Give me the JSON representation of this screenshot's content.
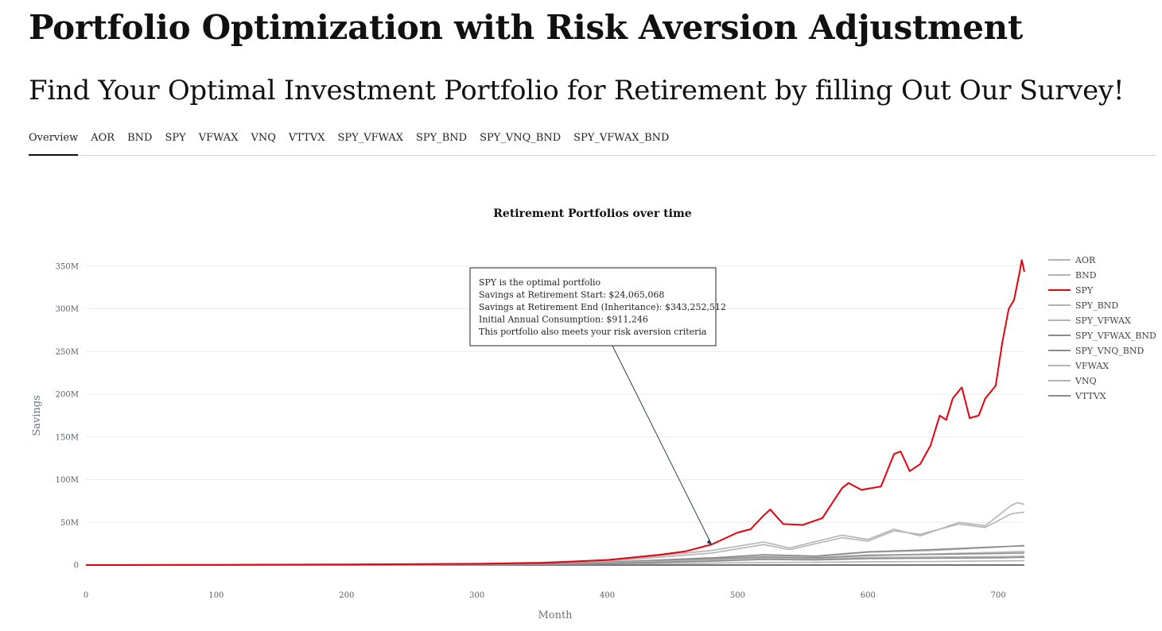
{
  "header": {
    "title": "Portfolio Optimization with Risk Aversion Adjustment",
    "subtitle": "Find Your Optimal Investment Portfolio for Retirement by filling Out Our Survey!"
  },
  "tabs": [
    {
      "label": "Overview",
      "active": true
    },
    {
      "label": "AOR"
    },
    {
      "label": "BND"
    },
    {
      "label": "SPY"
    },
    {
      "label": "VFWAX"
    },
    {
      "label": "VNQ"
    },
    {
      "label": "VTTVX"
    },
    {
      "label": "SPY_VFWAX"
    },
    {
      "label": "SPY_BND"
    },
    {
      "label": "SPY_VNQ_BND"
    },
    {
      "label": "SPY_VFWAX_BND"
    }
  ],
  "colors": {
    "highlight": "#e8000b",
    "muted": "#b4b4b4",
    "muted_dark": "#8c8c8c"
  },
  "chart_data": {
    "type": "line",
    "title": "Retirement Portfolios over time",
    "xlabel": "Month",
    "ylabel": "Savings",
    "xlim": [
      0,
      720
    ],
    "ylim": [
      0,
      360000000
    ],
    "x_ticks": [
      0,
      100,
      200,
      300,
      400,
      500,
      600,
      700
    ],
    "y_ticks": [
      0,
      50000000,
      100000000,
      150000000,
      200000000,
      250000000,
      300000000,
      350000000
    ],
    "y_tick_labels": [
      "0",
      "50M",
      "100M",
      "150M",
      "200M",
      "250M",
      "300M",
      "350M"
    ],
    "grid": true,
    "legend_position": "right",
    "series": [
      {
        "name": "AOR",
        "color": "#b4b4b4",
        "points": [
          [
            0,
            0
          ],
          [
            100,
            150000
          ],
          [
            200,
            400000
          ],
          [
            300,
            900000
          ],
          [
            400,
            2500000
          ],
          [
            480,
            5500000
          ],
          [
            520,
            9000000
          ],
          [
            560,
            8000000
          ],
          [
            600,
            11000000
          ],
          [
            650,
            13000000
          ],
          [
            700,
            15000000
          ],
          [
            720,
            16000000
          ]
        ]
      },
      {
        "name": "BND",
        "color": "#b4b4b4",
        "points": [
          [
            0,
            0
          ],
          [
            100,
            100000
          ],
          [
            200,
            250000
          ],
          [
            300,
            500000
          ],
          [
            400,
            1200000
          ],
          [
            480,
            2200000
          ],
          [
            520,
            3000000
          ],
          [
            560,
            3200000
          ],
          [
            600,
            3800000
          ],
          [
            650,
            4200000
          ],
          [
            700,
            4800000
          ],
          [
            720,
            5000000
          ]
        ]
      },
      {
        "name": "SPY",
        "color": "#e8000b",
        "highlight": true,
        "points": [
          [
            0,
            0
          ],
          [
            100,
            300000
          ],
          [
            200,
            700000
          ],
          [
            300,
            1500000
          ],
          [
            350,
            2500000
          ],
          [
            400,
            6000000
          ],
          [
            440,
            12000000
          ],
          [
            460,
            16000000
          ],
          [
            480,
            24065068
          ],
          [
            500,
            38000000
          ],
          [
            510,
            42000000
          ],
          [
            520,
            58000000
          ],
          [
            525,
            65000000
          ],
          [
            535,
            48000000
          ],
          [
            550,
            47000000
          ],
          [
            565,
            55000000
          ],
          [
            580,
            90000000
          ],
          [
            585,
            96000000
          ],
          [
            595,
            88000000
          ],
          [
            610,
            92000000
          ],
          [
            620,
            130000000
          ],
          [
            625,
            133000000
          ],
          [
            632,
            110000000
          ],
          [
            640,
            118000000
          ],
          [
            648,
            140000000
          ],
          [
            655,
            175000000
          ],
          [
            660,
            170000000
          ],
          [
            665,
            195000000
          ],
          [
            672,
            208000000
          ],
          [
            678,
            172000000
          ],
          [
            685,
            175000000
          ],
          [
            690,
            195000000
          ],
          [
            698,
            210000000
          ],
          [
            703,
            260000000
          ],
          [
            708,
            300000000
          ],
          [
            712,
            310000000
          ],
          [
            716,
            340000000
          ],
          [
            718,
            357000000
          ],
          [
            720,
            343252512
          ]
        ]
      },
      {
        "name": "SPY_BND",
        "color": "#b4b4b4",
        "points": [
          [
            0,
            0
          ],
          [
            100,
            200000
          ],
          [
            200,
            500000
          ],
          [
            300,
            1100000
          ],
          [
            400,
            3500000
          ],
          [
            480,
            8000000
          ],
          [
            520,
            11500000
          ],
          [
            560,
            10000000
          ],
          [
            600,
            15000000
          ],
          [
            650,
            17000000
          ],
          [
            700,
            21000000
          ],
          [
            720,
            23000000
          ]
        ]
      },
      {
        "name": "SPY_VFWAX",
        "color": "#b4b4b4",
        "points": [
          [
            0,
            0
          ],
          [
            100,
            250000
          ],
          [
            200,
            600000
          ],
          [
            300,
            1300000
          ],
          [
            400,
            4500000
          ],
          [
            480,
            14000000
          ],
          [
            520,
            24000000
          ],
          [
            540,
            18000000
          ],
          [
            580,
            32000000
          ],
          [
            600,
            28000000
          ],
          [
            620,
            40000000
          ],
          [
            640,
            36000000
          ],
          [
            670,
            48000000
          ],
          [
            690,
            44000000
          ],
          [
            710,
            60000000
          ],
          [
            720,
            62000000
          ]
        ]
      },
      {
        "name": "SPY_VFWAX_BND",
        "color": "#8c8c8c",
        "points": [
          [
            0,
            0
          ],
          [
            100,
            200000
          ],
          [
            200,
            450000
          ],
          [
            300,
            1000000
          ],
          [
            400,
            3200000
          ],
          [
            480,
            8500000
          ],
          [
            520,
            12000000
          ],
          [
            560,
            10500000
          ],
          [
            600,
            15500000
          ],
          [
            650,
            18000000
          ],
          [
            700,
            21500000
          ],
          [
            720,
            22500000
          ]
        ]
      },
      {
        "name": "SPY_VNQ_BND",
        "color": "#8c8c8c",
        "points": [
          [
            0,
            0
          ],
          [
            100,
            180000
          ],
          [
            200,
            420000
          ],
          [
            300,
            950000
          ],
          [
            400,
            3000000
          ],
          [
            480,
            7000000
          ],
          [
            520,
            9500000
          ],
          [
            560,
            8500000
          ],
          [
            600,
            11500000
          ],
          [
            650,
            12500000
          ],
          [
            700,
            13500000
          ],
          [
            720,
            14000000
          ]
        ]
      },
      {
        "name": "VFWAX",
        "color": "#b4b4b4",
        "points": [
          [
            0,
            0
          ],
          [
            100,
            150000
          ],
          [
            200,
            350000
          ],
          [
            300,
            800000
          ],
          [
            400,
            2800000
          ],
          [
            480,
            6000000
          ],
          [
            520,
            8000000
          ],
          [
            560,
            7000000
          ],
          [
            600,
            9000000
          ],
          [
            650,
            9500000
          ],
          [
            700,
            10000000
          ],
          [
            720,
            10500000
          ]
        ]
      },
      {
        "name": "VNQ",
        "color": "#b4b4b4",
        "points": [
          [
            0,
            0
          ],
          [
            100,
            280000
          ],
          [
            200,
            650000
          ],
          [
            300,
            1400000
          ],
          [
            400,
            5000000
          ],
          [
            480,
            17000000
          ],
          [
            520,
            27000000
          ],
          [
            540,
            20000000
          ],
          [
            580,
            35000000
          ],
          [
            600,
            30000000
          ],
          [
            620,
            42000000
          ],
          [
            640,
            34000000
          ],
          [
            670,
            50000000
          ],
          [
            690,
            46000000
          ],
          [
            710,
            70000000
          ],
          [
            715,
            73000000
          ],
          [
            720,
            71000000
          ]
        ]
      },
      {
        "name": "VTTVX",
        "color": "#8c8c8c",
        "points": [
          [
            0,
            0
          ],
          [
            100,
            120000
          ],
          [
            200,
            300000
          ],
          [
            300,
            700000
          ],
          [
            400,
            2000000
          ],
          [
            480,
            4500000
          ],
          [
            520,
            6500000
          ],
          [
            560,
            6000000
          ],
          [
            600,
            7500000
          ],
          [
            650,
            8000000
          ],
          [
            700,
            8500000
          ],
          [
            720,
            9000000
          ]
        ]
      }
    ],
    "annotation": {
      "lines": [
        "SPY is the optimal portfolio",
        "Savings at Retirement Start: $24,065,068",
        "Savings at Retirement End (Inheritance): $343,252,512",
        "Initial Annual Consumption: $911,246",
        "This portfolio also meets your risk aversion criteria"
      ],
      "target": [
        480,
        24065068
      ]
    }
  }
}
